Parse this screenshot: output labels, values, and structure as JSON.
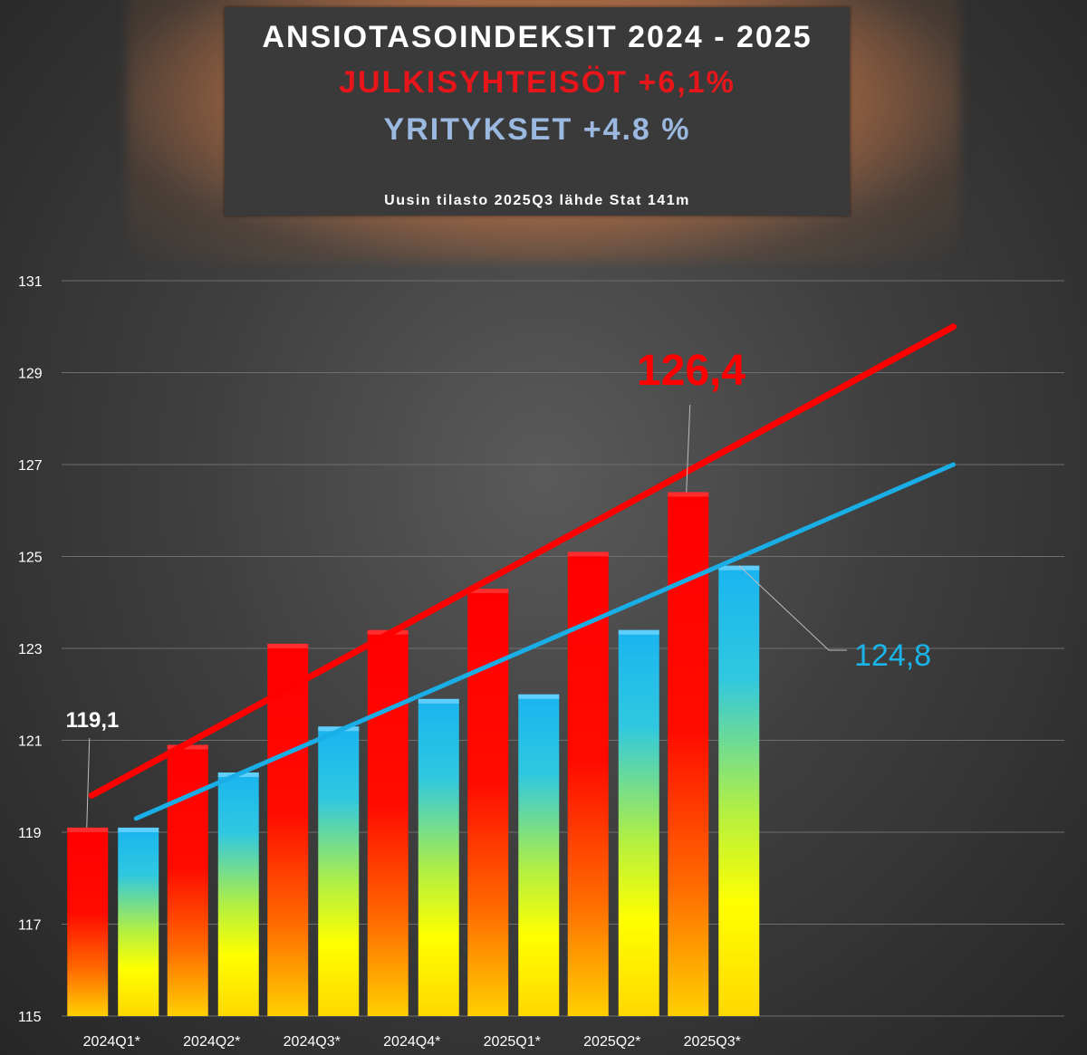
{
  "header": {
    "title": "ANSIOTASOINDEKSIT 2024 - 2025",
    "line_public": "JULKISYHTEISÖT +6,1%",
    "line_business": "YRITYKSET +4.8 %",
    "source": "Uusin tilasto 2025Q3 lähde Stat 141m"
  },
  "colors": {
    "public": "#ff0000",
    "business": "#19b4ea",
    "trend_public": "#ff0000",
    "trend_business": "#19aee6"
  },
  "chart_data": {
    "type": "bar",
    "categories": [
      "2024Q1*",
      "2024Q2*",
      "2024Q3*",
      "2024Q4*",
      "2025Q1*",
      "2025Q2*",
      "2025Q3*"
    ],
    "series": [
      {
        "key": "public",
        "values": [
          119.1,
          120.9,
          123.1,
          123.4,
          124.3,
          125.1,
          126.4
        ]
      },
      {
        "key": "business",
        "values": [
          119.1,
          120.3,
          121.3,
          121.9,
          122.0,
          123.4,
          124.8
        ]
      }
    ],
    "trendlines": [
      {
        "series": "public",
        "start": 119.8,
        "end": 130.0,
        "extends_periods": 2.5
      },
      {
        "series": "business",
        "start": 119.3,
        "end": 127.0,
        "extends_periods": 2.5
      }
    ],
    "yticks": [
      "115",
      "117",
      "119",
      "121",
      "123",
      "125",
      "127",
      "129",
      "131"
    ],
    "ylim": [
      115,
      131
    ],
    "grid": true,
    "annotations": [
      {
        "text": "119,1",
        "series": "public",
        "index": 0
      },
      {
        "text": "126,4",
        "series": "public",
        "index": 6
      },
      {
        "text": "124,8",
        "series": "business",
        "index": 6
      }
    ]
  }
}
